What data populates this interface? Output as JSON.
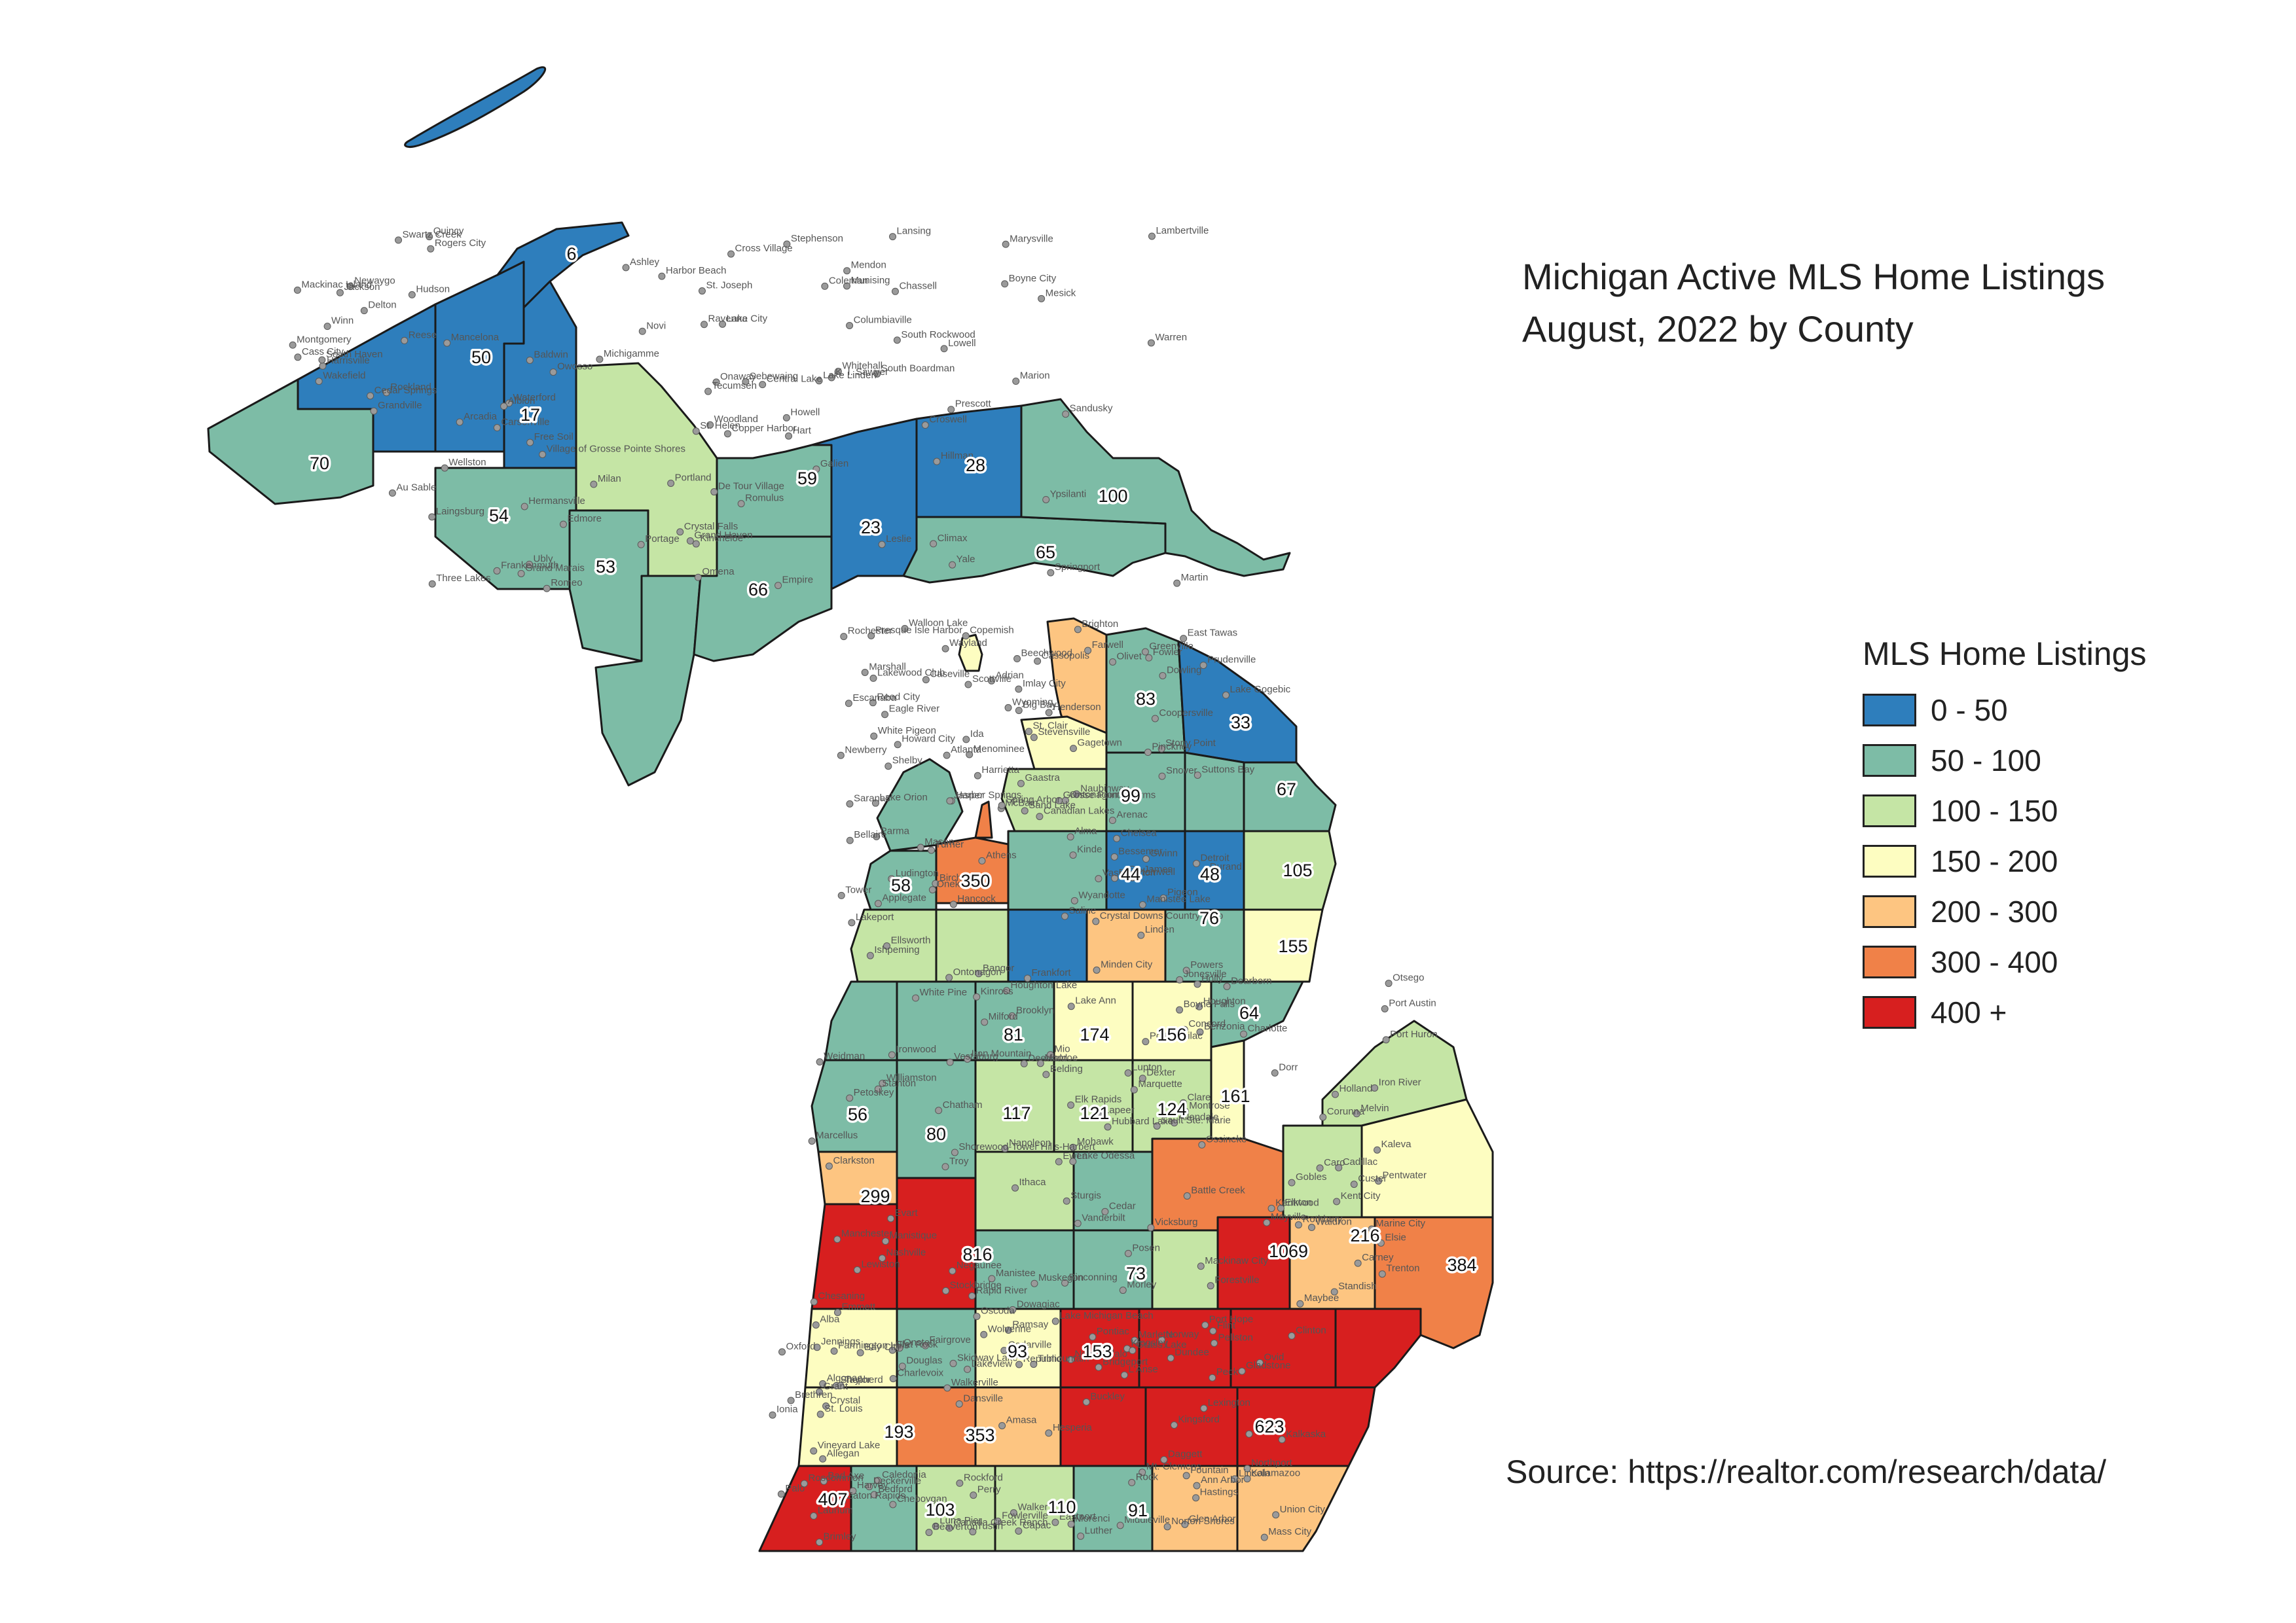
{
  "title": {
    "line1": "Michigan Active MLS Home Listings",
    "line2": "August, 2022 by County"
  },
  "legend": {
    "title": "MLS Home Listings",
    "items": [
      {
        "label": "0 - 50",
        "color": "#2e7ebc"
      },
      {
        "label": "50 - 100",
        "color": "#7dbca6"
      },
      {
        "label": "100 - 150",
        "color": "#c5e5a5"
      },
      {
        "label": "150 - 200",
        "color": "#fdfdc1"
      },
      {
        "label": "200 - 300",
        "color": "#fdc581"
      },
      {
        "label": "300 - 400",
        "color": "#f08148"
      },
      {
        "label": "400 +",
        "color": "#d71f1f"
      }
    ]
  },
  "source": "Source: https://realtor.com/research/data/",
  "county_values": [
    "6",
    "50",
    "17",
    "70",
    "54",
    "53",
    "66",
    "59",
    "23",
    "28",
    "65",
    "100",
    "83",
    "33",
    "67",
    "99",
    "44",
    "48",
    "105",
    "58",
    "350",
    "155",
    "76",
    "64",
    "174",
    "156",
    "81",
    "161",
    "124",
    "121",
    "117",
    "56",
    "80",
    "299",
    "816",
    "1069",
    "216",
    "73",
    "384",
    "93",
    "153",
    "193",
    "353",
    "623",
    "407",
    "103",
    "110",
    "91"
  ],
  "places": [
    "Copper Harbor",
    "Eagle River",
    "Mohawk",
    "Laurium",
    "Lake Linden",
    "Hancock",
    "Houghton",
    "Trimountain",
    "Chassell",
    "Ontonagon",
    "White Pine",
    "Mass City",
    "Rockland",
    "Lake Gogebic",
    "Ewen",
    "L'Anse",
    "Three Lakes",
    "Big Bay",
    "Marquette",
    "Harvey",
    "Michigamme",
    "Ishpeming",
    "Negaunee",
    "Republic",
    "K. I. Sawyer",
    "Gwinn",
    "Ironwood",
    "Ramsay",
    "Wakefield",
    "Bessemer",
    "Iron River",
    "Amasa",
    "Crystal Falls",
    "Gaastra",
    "Iron Mountain",
    "Norway",
    "Hermansville",
    "Powers",
    "Carney",
    "Daggett",
    "Stephenson",
    "Menominee",
    "Chatham",
    "Rock",
    "Grand Marais",
    "Newberry",
    "Sault Ste. Marie",
    "Brimley",
    "Kincheloe",
    "Naubinway",
    "Manistique",
    "Gladstone",
    "Mackinac Island",
    "St. James",
    "Mackinaw City",
    "Cheboygan",
    "Rogers City",
    "Presque Isle Harbor",
    "Posen",
    "Pellston",
    "Cross Village",
    "Harbor Springs",
    "Petoskey",
    "Charlevoix",
    "Boyne City",
    "Walloon Lake",
    "Boyne Falls",
    "Wolverine",
    "Onaway",
    "Tower",
    "Vanderbilt",
    "Canada Creek Ranch",
    "Hillman",
    "Atlanta",
    "Lewiston",
    "Alba",
    "Mancelona",
    "Bellaire",
    "Elk Rapids",
    "Eastport",
    "Central Lake",
    "Ellsworth",
    "Ossineke",
    "Northport",
    "Omena",
    "Suttons Bay",
    "Cedar",
    "Glen Arbor",
    "Empire",
    "Crystal Downs Country Club",
    "Lake Ann",
    "Kalkaska",
    "South Boardman",
    "Manistee Lake",
    "Hubbard Lake",
    "Lincoln",
    "Harrisville",
    "Frankfort",
    "Benzonia",
    "Kingsley",
    "Arcadia",
    "Copemish",
    "Kaleva",
    "Brethren",
    "Wellston",
    "Onekama",
    "Manistee",
    "Buckley",
    "Mesick",
    "Harrietta",
    "Cadillac",
    "Jennings",
    "Lake City",
    "McBain",
    "Houghton Lake",
    "Roscommon",
    "St. Helen",
    "Prudenville",
    "Mio",
    "Oscoda",
    "Au Sable",
    "East Tawas",
    "Lupton",
    "Skidway Lake",
    "Prescott",
    "Turner",
    "Standish",
    "Tustin",
    "Marion",
    "Reed City",
    "Evart",
    "Luther",
    "Baldwin",
    "Scottville",
    "Custer",
    "Fountain",
    "Free Soil",
    "Ludington",
    "Pentwater",
    "Walkerville",
    "Hart",
    "Shelby",
    "Rothbury",
    "Hesperia",
    "Whitehall",
    "Lakewood Club",
    "Muskegon",
    "Norton Shores",
    "Grand Haven",
    "Beechwood",
    "Holland",
    "Douglas",
    "South Haven",
    "Bangor",
    "Gobles",
    "Lake Michigan Beach",
    "St. Joseph",
    "Stevensville",
    "Shorewood-Tower Hills-Harbert",
    "New Buffalo",
    "Galien",
    "Cassopolis",
    "Marcellus",
    "Dowagiac",
    "Mendon",
    "White Pigeon",
    "Sturgis",
    "Union City",
    "Quincy",
    "Jonesville",
    "Waldron",
    "Morenci",
    "Montgomery",
    "Farwell",
    "Clare",
    "Beaverton",
    "Coleman",
    "Barryton",
    "Weidman",
    "Shepherd",
    "Winn",
    "Canadian Lakes",
    "Morley",
    "Grant",
    "Newaygo",
    "Howard City",
    "Stanton",
    "Crystal",
    "Edmore",
    "Sand Lake",
    "Kent City",
    "Rockford",
    "Ravenna",
    "Coopersville",
    "Allendale",
    "Walker",
    "Grandville",
    "Wyoming",
    "Kentwood",
    "Caledonia",
    "Cedar Springs",
    "Greenville",
    "Belding",
    "Ionia",
    "Lowell",
    "Saranac",
    "Lake Odessa",
    "Palo",
    "Portland",
    "Fowler",
    "Elsie",
    "Ovid",
    "Owosso",
    "Durand",
    "Corunna",
    "Perry",
    "Laingsburg",
    "Alma",
    "Ithaca",
    "St. Louis",
    "Ashley",
    "Henderson",
    "Chesaning",
    "Bridgeport",
    "Frankenmuth",
    "Birch Run",
    "Montrose",
    "Flint",
    "Swartz Creek",
    "Linden",
    "Holly",
    "Oxford",
    "Romeo",
    "Rochester",
    "Troy",
    "Pontiac",
    "Waterford",
    "Lake Orion",
    "Clarkston",
    "Mt. Clemens",
    "Warren",
    "Detroit",
    "Dearborn",
    "Taylor",
    "Romulus",
    "Wyandotte",
    "Trenton",
    "Flat Rock",
    "South Rockwood",
    "Stony Point",
    "Monroe",
    "Luna Pier",
    "Lambertville",
    "Ida",
    "Maybee",
    "Dundee",
    "Milan",
    "Saline",
    "Dexter",
    "Ann Arbor",
    "Ypsilanti",
    "Chelsea",
    "Manchester",
    "Clinton",
    "Tecumseh",
    "Adrian",
    "Deerfield",
    "Onsted",
    "Hudson",
    "Jasper",
    "Brooklyn",
    "Grass Lake",
    "Jackson",
    "Parma",
    "Napoleon",
    "Vineyard Lake",
    "Springport",
    "Spring Arbor",
    "Concord",
    "Homer",
    "Albion",
    "Marshall",
    "Battle Creek",
    "Bedford",
    "Climax",
    "Athens",
    "Vicksburg",
    "Kalamazoo",
    "Portage",
    "Plainwell",
    "Otsego",
    "Allegan",
    "Martin",
    "Wayland",
    "Dorr",
    "Middleville",
    "Delton",
    "Dowling",
    "Nashville",
    "Hastings",
    "Woodland",
    "Olivet",
    "Charlotte",
    "Eaton Rapids",
    "Lansing",
    "Mason",
    "Williamston",
    "Fowlerville",
    "Howell",
    "Pinckney",
    "Milford",
    "Farmington Hills",
    "Novi",
    "Brighton",
    "Stockbridge",
    "Dansville",
    "Leslie",
    "Caseville",
    "Port Austin",
    "Port Hope",
    "Harbor Beach",
    "Kinde",
    "Pinconning",
    "Bay City",
    "Sebewaing",
    "Pigeon",
    "Elkton",
    "Bad Axe",
    "Ubly",
    "Minden City",
    "Forestville",
    "Deckerville",
    "Cass City",
    "Gagetown",
    "Caro",
    "Fairgrove",
    "Reese",
    "Vassar",
    "Mayville",
    "Marlette",
    "Sandusky",
    "Snover",
    "Port Sanilac",
    "Peck",
    "Croswell",
    "Applegate",
    "Melvin",
    "Lexington",
    "Columbiaville",
    "Imlay City",
    "Lapeer",
    "Capac",
    "Yale",
    "Lakeport",
    "Port Huron",
    "Emmett",
    "Marysville",
    "St. Clair",
    "Marine City",
    "Algonac",
    "Village of Grosse Pointe Shores",
    "Grosse Pointe Farms",
    "Kinross",
    "Kingsford",
    "Carsonville",
    "Arenac",
    "Vestaburg",
    "Lakeview",
    "Munising",
    "Escanaba",
    "Rapid River",
    "Cedarville",
    "De Tour Village",
    "Ontonagon"
  ]
}
